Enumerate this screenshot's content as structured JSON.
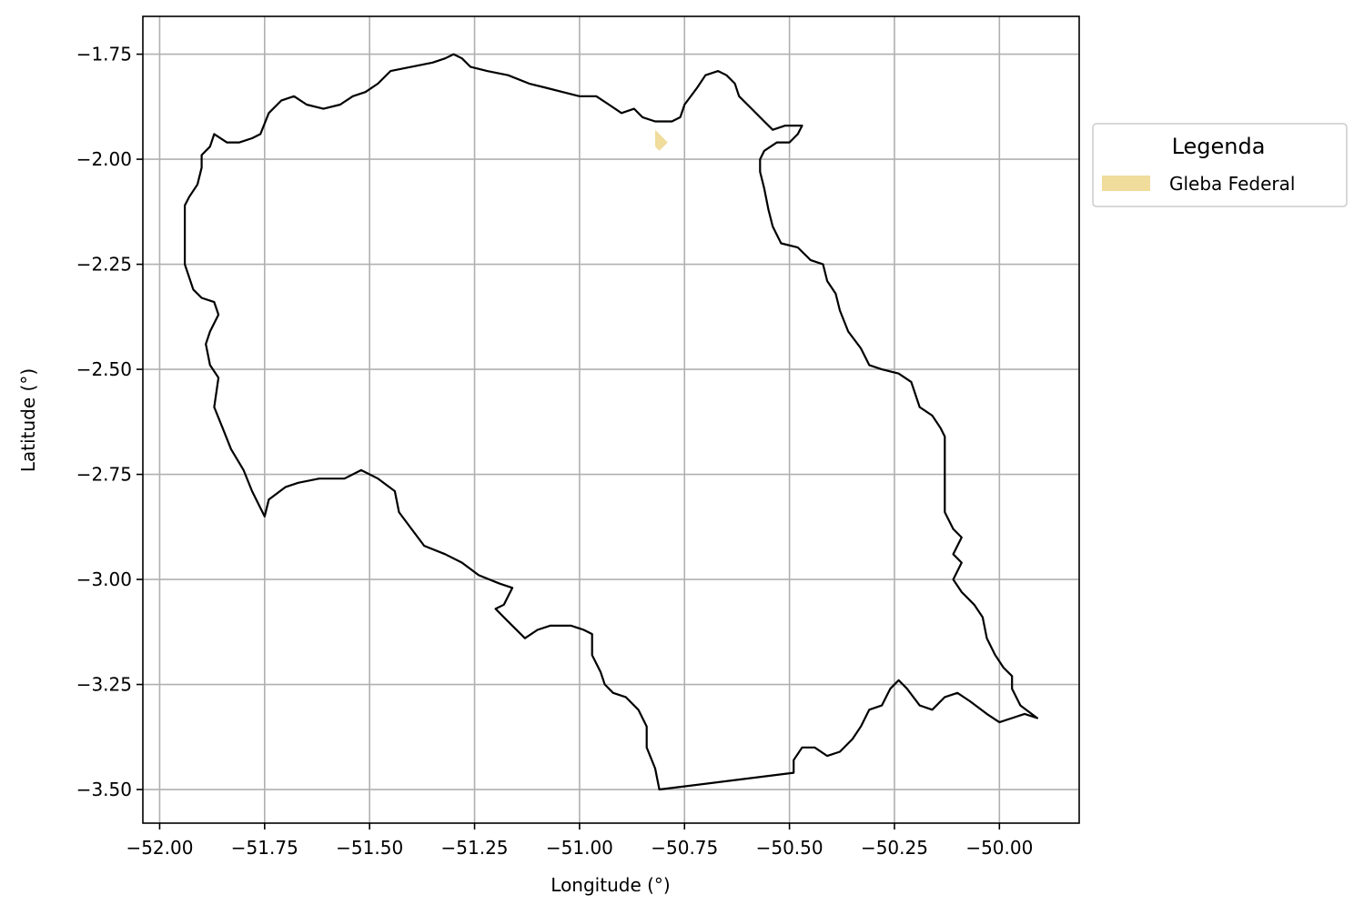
{
  "chart_data": {
    "type": "map",
    "xlabel": "Longitude (°)",
    "ylabel": "Latitude (°)",
    "xlim": [
      -52.04,
      -49.81
    ],
    "ylim": [
      -3.58,
      -1.66
    ],
    "x_ticks": [
      -52.0,
      -51.75,
      -51.5,
      -51.25,
      -51.0,
      -50.75,
      -50.5,
      -50.25,
      -50.0
    ],
    "x_tick_labels": [
      "−52.00",
      "−51.75",
      "−51.50",
      "−51.25",
      "−51.00",
      "−50.75",
      "−50.50",
      "−50.25",
      "−50.00"
    ],
    "y_ticks": [
      -1.75,
      -2.0,
      -2.25,
      -2.5,
      -2.75,
      -3.0,
      -3.25,
      -3.5
    ],
    "y_tick_labels": [
      "−1.75",
      "−2.00",
      "−2.25",
      "−2.50",
      "−2.75",
      "−3.00",
      "−3.25",
      "−3.50"
    ],
    "grid": true,
    "legend": {
      "title": "Legenda",
      "placement": "outside-upper-right",
      "entries": [
        {
          "label": "Gleba Federal",
          "color": "#F0DC9B"
        }
      ]
    },
    "boundary": {
      "stroke": "#000000",
      "coordinates": [
        [
          -51.94,
          -2.11
        ],
        [
          -51.93,
          -2.09
        ],
        [
          -51.91,
          -2.06
        ],
        [
          -51.9,
          -2.02
        ],
        [
          -51.9,
          -1.99
        ],
        [
          -51.88,
          -1.97
        ],
        [
          -51.87,
          -1.94
        ],
        [
          -51.84,
          -1.96
        ],
        [
          -51.81,
          -1.96
        ],
        [
          -51.78,
          -1.95
        ],
        [
          -51.76,
          -1.94
        ],
        [
          -51.74,
          -1.89
        ],
        [
          -51.71,
          -1.86
        ],
        [
          -51.68,
          -1.85
        ],
        [
          -51.65,
          -1.87
        ],
        [
          -51.61,
          -1.88
        ],
        [
          -51.57,
          -1.87
        ],
        [
          -51.54,
          -1.85
        ],
        [
          -51.51,
          -1.84
        ],
        [
          -51.48,
          -1.82
        ],
        [
          -51.45,
          -1.79
        ],
        [
          -51.4,
          -1.78
        ],
        [
          -51.35,
          -1.77
        ],
        [
          -51.32,
          -1.76
        ],
        [
          -51.3,
          -1.75
        ],
        [
          -51.28,
          -1.76
        ],
        [
          -51.26,
          -1.78
        ],
        [
          -51.22,
          -1.79
        ],
        [
          -51.17,
          -1.8
        ],
        [
          -51.12,
          -1.82
        ],
        [
          -51.08,
          -1.83
        ],
        [
          -51.04,
          -1.84
        ],
        [
          -51.0,
          -1.85
        ],
        [
          -50.96,
          -1.85
        ],
        [
          -50.93,
          -1.87
        ],
        [
          -50.9,
          -1.89
        ],
        [
          -50.87,
          -1.88
        ],
        [
          -50.85,
          -1.9
        ],
        [
          -50.82,
          -1.91
        ],
        [
          -50.78,
          -1.91
        ],
        [
          -50.76,
          -1.9
        ],
        [
          -50.75,
          -1.87
        ],
        [
          -50.72,
          -1.83
        ],
        [
          -50.7,
          -1.8
        ],
        [
          -50.67,
          -1.79
        ],
        [
          -50.65,
          -1.8
        ],
        [
          -50.63,
          -1.82
        ],
        [
          -50.62,
          -1.85
        ],
        [
          -50.59,
          -1.88
        ],
        [
          -50.56,
          -1.91
        ],
        [
          -50.54,
          -1.93
        ],
        [
          -50.51,
          -1.92
        ],
        [
          -50.47,
          -1.92
        ],
        [
          -50.48,
          -1.94
        ],
        [
          -50.5,
          -1.96
        ],
        [
          -50.53,
          -1.96
        ],
        [
          -50.56,
          -1.98
        ],
        [
          -50.57,
          -2.0
        ],
        [
          -50.57,
          -2.03
        ],
        [
          -50.56,
          -2.07
        ],
        [
          -50.55,
          -2.12
        ],
        [
          -50.54,
          -2.16
        ],
        [
          -50.52,
          -2.2
        ],
        [
          -50.48,
          -2.21
        ],
        [
          -50.45,
          -2.24
        ],
        [
          -50.42,
          -2.25
        ],
        [
          -50.41,
          -2.29
        ],
        [
          -50.39,
          -2.32
        ],
        [
          -50.38,
          -2.36
        ],
        [
          -50.36,
          -2.41
        ],
        [
          -50.33,
          -2.45
        ],
        [
          -50.31,
          -2.49
        ],
        [
          -50.28,
          -2.5
        ],
        [
          -50.24,
          -2.51
        ],
        [
          -50.21,
          -2.53
        ],
        [
          -50.19,
          -2.59
        ],
        [
          -50.16,
          -2.61
        ],
        [
          -50.14,
          -2.64
        ],
        [
          -50.13,
          -2.66
        ],
        [
          -50.13,
          -2.74
        ],
        [
          -50.13,
          -2.84
        ],
        [
          -50.11,
          -2.88
        ],
        [
          -50.09,
          -2.9
        ],
        [
          -50.11,
          -2.94
        ],
        [
          -50.09,
          -2.96
        ],
        [
          -50.11,
          -3.0
        ],
        [
          -50.09,
          -3.03
        ],
        [
          -50.06,
          -3.06
        ],
        [
          -50.04,
          -3.09
        ],
        [
          -50.03,
          -3.14
        ],
        [
          -50.01,
          -3.18
        ],
        [
          -49.99,
          -3.21
        ],
        [
          -49.97,
          -3.23
        ],
        [
          -49.97,
          -3.26
        ],
        [
          -49.95,
          -3.3
        ],
        [
          -49.91,
          -3.33
        ],
        [
          -49.94,
          -3.32
        ],
        [
          -49.97,
          -3.33
        ],
        [
          -50.0,
          -3.34
        ],
        [
          -50.03,
          -3.32
        ],
        [
          -50.07,
          -3.29
        ],
        [
          -50.1,
          -3.27
        ],
        [
          -50.13,
          -3.28
        ],
        [
          -50.16,
          -3.31
        ],
        [
          -50.19,
          -3.3
        ],
        [
          -50.22,
          -3.26
        ],
        [
          -50.24,
          -3.24
        ],
        [
          -50.26,
          -3.26
        ],
        [
          -50.28,
          -3.3
        ],
        [
          -50.31,
          -3.31
        ],
        [
          -50.33,
          -3.35
        ],
        [
          -50.35,
          -3.38
        ],
        [
          -50.38,
          -3.41
        ],
        [
          -50.41,
          -3.42
        ],
        [
          -50.44,
          -3.4
        ],
        [
          -50.47,
          -3.4
        ],
        [
          -50.49,
          -3.43
        ],
        [
          -50.49,
          -3.46
        ],
        [
          -50.81,
          -3.5
        ],
        [
          -50.82,
          -3.45
        ],
        [
          -50.84,
          -3.4
        ],
        [
          -50.84,
          -3.35
        ],
        [
          -50.86,
          -3.31
        ],
        [
          -50.89,
          -3.28
        ],
        [
          -50.92,
          -3.27
        ],
        [
          -50.94,
          -3.25
        ],
        [
          -50.95,
          -3.22
        ],
        [
          -50.97,
          -3.18
        ],
        [
          -50.97,
          -3.13
        ],
        [
          -50.99,
          -3.12
        ],
        [
          -51.02,
          -3.11
        ],
        [
          -51.07,
          -3.11
        ],
        [
          -51.1,
          -3.12
        ],
        [
          -51.13,
          -3.14
        ],
        [
          -51.17,
          -3.1
        ],
        [
          -51.2,
          -3.07
        ],
        [
          -51.18,
          -3.06
        ],
        [
          -51.16,
          -3.02
        ],
        [
          -51.19,
          -3.01
        ],
        [
          -51.24,
          -2.99
        ],
        [
          -51.28,
          -2.96
        ],
        [
          -51.32,
          -2.94
        ],
        [
          -51.37,
          -2.92
        ],
        [
          -51.4,
          -2.88
        ],
        [
          -51.43,
          -2.84
        ],
        [
          -51.44,
          -2.79
        ],
        [
          -51.48,
          -2.76
        ],
        [
          -51.52,
          -2.74
        ],
        [
          -51.56,
          -2.76
        ],
        [
          -51.62,
          -2.76
        ],
        [
          -51.67,
          -2.77
        ],
        [
          -51.7,
          -2.78
        ],
        [
          -51.74,
          -2.81
        ],
        [
          -51.75,
          -2.85
        ],
        [
          -51.76,
          -2.83
        ],
        [
          -51.78,
          -2.79
        ],
        [
          -51.8,
          -2.74
        ],
        [
          -51.83,
          -2.69
        ],
        [
          -51.85,
          -2.64
        ],
        [
          -51.87,
          -2.59
        ],
        [
          -51.86,
          -2.52
        ],
        [
          -51.88,
          -2.49
        ],
        [
          -51.89,
          -2.44
        ],
        [
          -51.88,
          -2.41
        ],
        [
          -51.86,
          -2.37
        ],
        [
          -51.87,
          -2.34
        ],
        [
          -51.9,
          -2.33
        ],
        [
          -51.92,
          -2.31
        ],
        [
          -51.94,
          -2.25
        ],
        [
          -51.94,
          -2.11
        ]
      ]
    },
    "gleba_federal": {
      "fill": "#F0DC9B",
      "coordinates": [
        [
          -50.82,
          -1.93
        ],
        [
          -50.81,
          -1.94
        ],
        [
          -50.79,
          -1.96
        ],
        [
          -50.81,
          -1.98
        ],
        [
          -50.82,
          -1.97
        ]
      ]
    }
  }
}
